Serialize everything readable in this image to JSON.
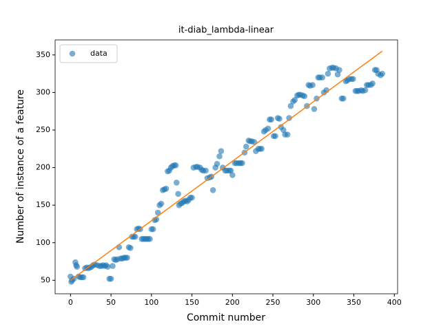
{
  "chart_data": {
    "type": "scatter",
    "title": "it-diab_lambda-linear",
    "x_label": "Commit number",
    "y_label": "Number of instance of a feature",
    "xlim": [
      -19,
      404
    ],
    "ylim": [
      32,
      370
    ],
    "xticks": [
      0,
      50,
      100,
      150,
      200,
      250,
      300,
      350,
      400
    ],
    "yticks": [
      50,
      100,
      150,
      200,
      250,
      300,
      350
    ],
    "legend": "upper left",
    "series": [
      {
        "name": "data",
        "color": "#1f77b4",
        "x": [
          0,
          1,
          2,
          4,
          6,
          7,
          8,
          10,
          12,
          14,
          16,
          18,
          20,
          22,
          24,
          26,
          28,
          30,
          33,
          36,
          38,
          40,
          42,
          44,
          46,
          48,
          50,
          52,
          54,
          56,
          58,
          60,
          62,
          64,
          66,
          68,
          70,
          72,
          74,
          76,
          78,
          80,
          82,
          84,
          86,
          88,
          90,
          92,
          94,
          96,
          98,
          100,
          102,
          104,
          106,
          108,
          110,
          112,
          114,
          116,
          118,
          120,
          122,
          124,
          126,
          128,
          130,
          131,
          133,
          134,
          136,
          138,
          140,
          142,
          144,
          146,
          148,
          150,
          152,
          155,
          157,
          160,
          162,
          164,
          167,
          169,
          172,
          174,
          176,
          179,
          181,
          184,
          186,
          188,
          191,
          193,
          196,
          198,
          200,
          203,
          205,
          208,
          210,
          212,
          215,
          217,
          220,
          222,
          224,
          227,
          229,
          232,
          234,
          236,
          239,
          241,
          244,
          246,
          248,
          251,
          253,
          256,
          258,
          260,
          263,
          265,
          268,
          270,
          272,
          275,
          277,
          280,
          282,
          284,
          287,
          289,
          292,
          294,
          296,
          299,
          301,
          304,
          306,
          308,
          311,
          313,
          316,
          318,
          320,
          323,
          325,
          328,
          330,
          332,
          335,
          337,
          340,
          342,
          344,
          347,
          349,
          352,
          354,
          356,
          359,
          361,
          364,
          366,
          368,
          371,
          373,
          376,
          378,
          380,
          383,
          385
        ],
        "values": [
          55,
          48,
          50,
          52,
          74,
          70,
          68,
          55,
          54,
          54,
          54,
          66,
          67,
          66,
          67,
          68,
          70,
          71,
          70,
          69,
          69,
          70,
          69,
          70,
          68,
          52,
          52,
          69,
          78,
          77,
          78,
          94,
          79,
          79,
          80,
          80,
          80,
          94,
          93,
          108,
          108,
          108,
          118,
          119,
          118,
          105,
          105,
          105,
          105,
          105,
          105,
          118,
          118,
          130,
          131,
          140,
          150,
          152,
          170,
          171,
          172,
          195,
          196,
          200,
          202,
          203,
          203,
          180,
          165,
          150,
          152,
          153,
          155,
          156,
          155,
          157,
          160,
          160,
          200,
          201,
          201,
          200,
          197,
          196,
          196,
          186,
          187,
          188,
          170,
          200,
          205,
          215,
          222,
          200,
          196,
          196,
          196,
          196,
          190,
          206,
          206,
          206,
          206,
          206,
          220,
          228,
          236,
          235,
          235,
          234,
          222,
          225,
          225,
          225,
          248,
          250,
          252,
          264,
          264,
          242,
          242,
          266,
          265,
          254,
          250,
          244,
          244,
          266,
          282,
          288,
          290,
          296,
          297,
          297,
          296,
          295,
          282,
          310,
          309,
          310,
          278,
          292,
          320,
          320,
          320,
          300,
          303,
          325,
          332,
          333,
          333,
          332,
          324,
          330,
          292,
          292,
          315,
          316,
          318,
          318,
          318,
          302,
          302,
          302,
          303,
          302,
          303,
          310,
          310,
          310,
          312,
          330,
          330,
          325,
          323,
          325
        ]
      }
    ],
    "trend": {
      "color": "#ff7f0e",
      "x": [
        0,
        385
      ],
      "values": [
        50,
        355
      ]
    }
  }
}
